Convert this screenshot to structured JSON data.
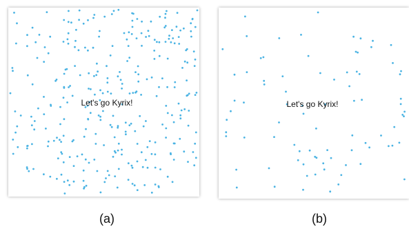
{
  "accent": "#4ab3e3",
  "panels": [
    {
      "id": "a",
      "label": "Let's go Kyrix!",
      "caption": "(a)",
      "dot_density": "dense"
    },
    {
      "id": "b",
      "label": "Let's go Kyrix!",
      "caption": "(b)",
      "dot_density": "sparse"
    }
  ]
}
